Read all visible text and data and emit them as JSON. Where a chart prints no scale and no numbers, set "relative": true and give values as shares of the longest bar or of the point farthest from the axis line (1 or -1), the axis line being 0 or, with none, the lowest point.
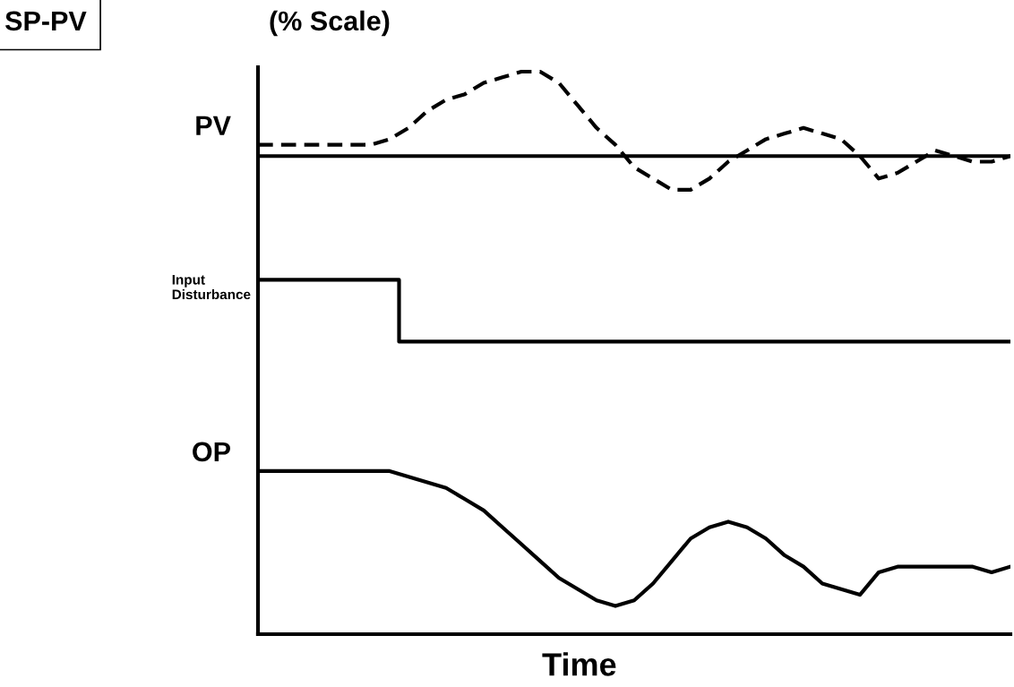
{
  "chart_data": {
    "type": "line",
    "title": "SP-PV",
    "subtitle": "(% Scale)",
    "xlabel": "Time",
    "relative": true,
    "categories": [
      null,
      null,
      null,
      null,
      null,
      null,
      null,
      null,
      null,
      null,
      null,
      null,
      null,
      null,
      null,
      null,
      null,
      null,
      null,
      null,
      null,
      null,
      null,
      null,
      null,
      null,
      null,
      null,
      null,
      null,
      null,
      null,
      null,
      null,
      null,
      null,
      null,
      null,
      null,
      null,
      null
    ],
    "series": [
      {
        "name": "PV",
        "color": "#000000",
        "line_style": "dashed",
        "values": [
          0.87,
          0.87,
          0.87,
          0.87,
          0.87,
          0.87,
          0.87,
          0.88,
          0.9,
          0.93,
          0.95,
          0.96,
          0.98,
          0.99,
          1.0,
          1.0,
          0.98,
          0.94,
          0.9,
          0.87,
          0.83,
          0.81,
          0.79,
          0.79,
          0.81,
          0.84,
          0.86,
          0.88,
          0.89,
          0.9,
          0.89,
          0.88,
          0.85,
          0.81,
          0.82,
          0.84,
          0.86,
          0.85,
          0.84,
          0.84,
          0.85
        ]
      },
      {
        "color": "#000000",
        "line_style": "solid",
        "values": [
          0.85,
          0.85,
          0.85,
          0.85,
          0.85,
          0.85,
          0.85,
          0.85,
          0.85,
          0.85,
          0.85,
          0.85,
          0.85,
          0.85,
          0.85,
          0.85,
          0.85,
          0.85,
          0.85,
          0.85,
          0.85,
          0.85,
          0.85,
          0.85,
          0.85,
          0.85,
          0.85,
          0.85,
          0.85,
          0.85,
          0.85,
          0.85,
          0.85,
          0.85,
          0.85,
          0.85,
          0.85,
          0.85,
          0.85,
          0.85,
          0.85
        ]
      },
      {
        "name": "Input\nDisturbance",
        "type": "step",
        "color": "#000000",
        "line_style": "solid",
        "values": [
          0.63,
          0.63,
          0.63,
          0.63,
          0.63,
          0.63,
          0.63,
          0.63,
          0.52,
          0.52,
          0.52,
          0.52,
          0.52,
          0.52,
          0.52,
          0.52,
          0.52,
          0.52,
          0.52,
          0.52,
          0.52,
          0.52,
          0.52,
          0.52,
          0.52,
          0.52,
          0.52,
          0.52,
          0.52,
          0.52,
          0.52,
          0.52,
          0.52,
          0.52,
          0.52,
          0.52,
          0.52,
          0.52,
          0.52,
          0.52,
          0.52
        ]
      },
      {
        "name": "OP",
        "color": "#000000",
        "line_style": "solid",
        "values": [
          0.29,
          0.29,
          0.29,
          0.29,
          0.29,
          0.29,
          0.29,
          0.29,
          0.28,
          0.27,
          0.26,
          0.24,
          0.22,
          0.19,
          0.16,
          0.13,
          0.1,
          0.08,
          0.06,
          0.05,
          0.06,
          0.09,
          0.13,
          0.17,
          0.19,
          0.2,
          0.19,
          0.17,
          0.14,
          0.12,
          0.09,
          0.08,
          0.07,
          0.11,
          0.12,
          0.12,
          0.12,
          0.12,
          0.12,
          0.11,
          0.12
        ]
      }
    ]
  }
}
